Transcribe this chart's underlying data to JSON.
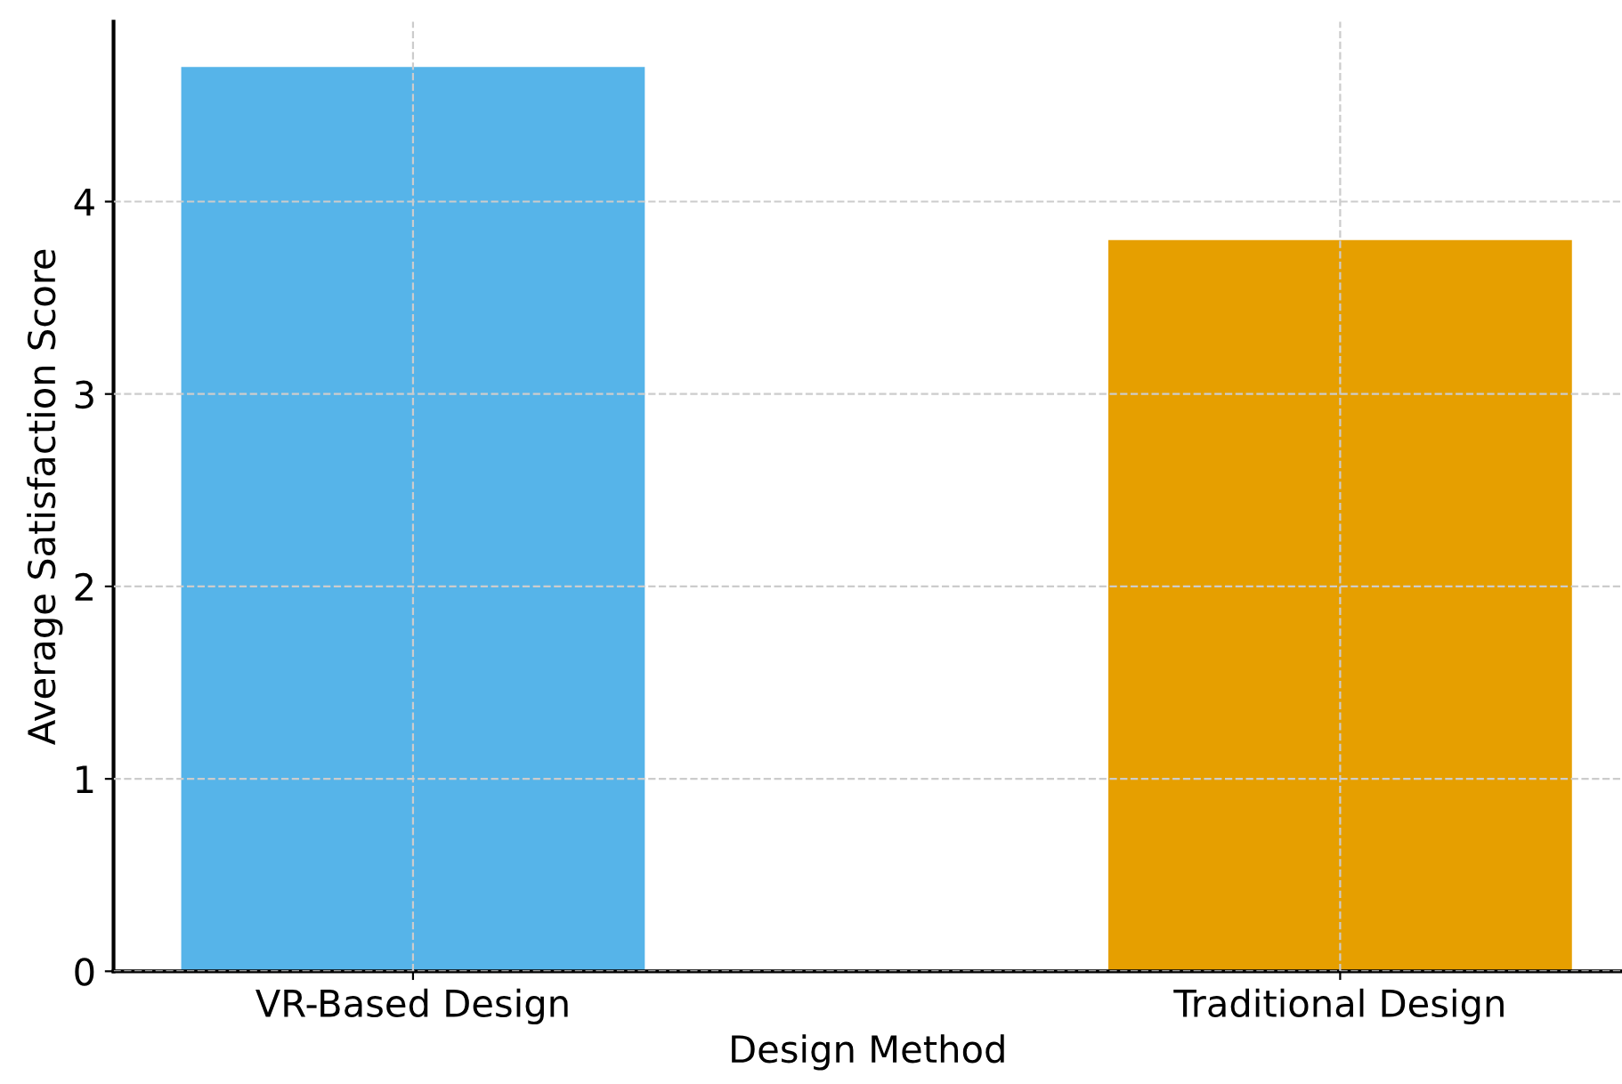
{
  "chart_data": {
    "type": "bar",
    "xlabel": "Design Method",
    "ylabel": "Average Satisfaction Score",
    "categories": [
      "VR-Based Design",
      "Traditional Design"
    ],
    "values": [
      4.7,
      3.8
    ],
    "colors": [
      "#56b4e9",
      "#e69f00"
    ],
    "ylim": [
      0,
      4.935
    ],
    "yticks": [
      0,
      1,
      2,
      3,
      4
    ],
    "grid": true
  }
}
